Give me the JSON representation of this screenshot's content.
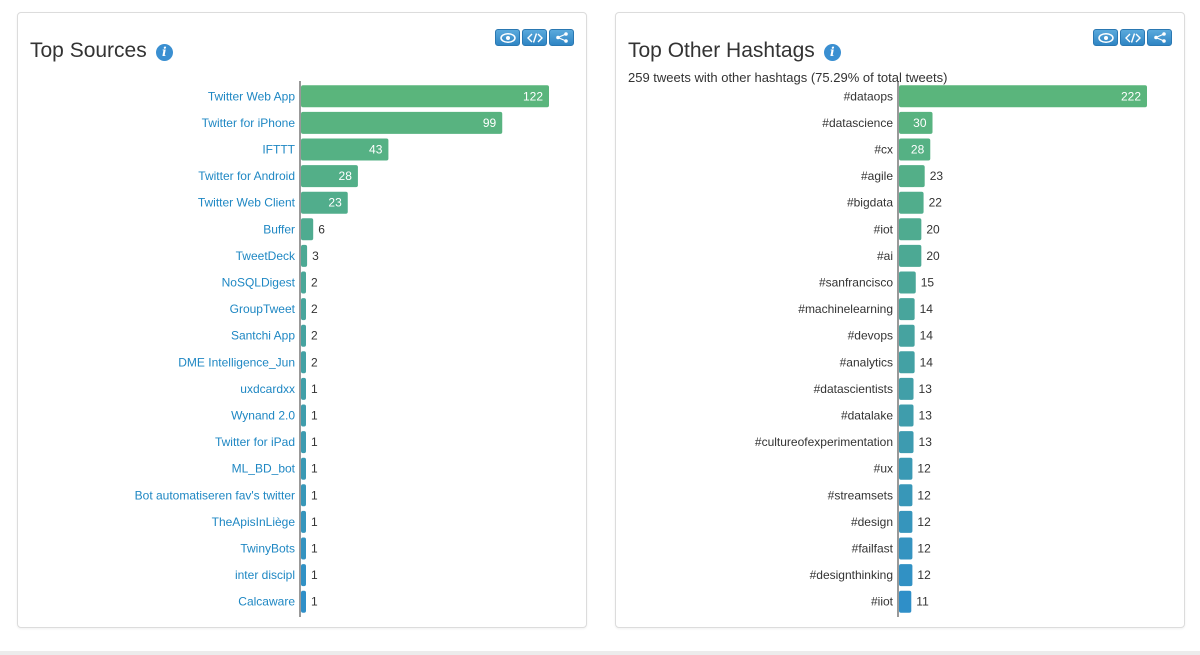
{
  "panels": {
    "sources": {
      "title": "Top Sources",
      "subtitle": ""
    },
    "hashtags": {
      "title": "Top Other Hashtags",
      "subtitle": "259 tweets with other hashtags (75.29% of total tweets)"
    }
  },
  "toolbar_icons": [
    "eye-icon",
    "code-icon",
    "share-icon"
  ],
  "colors": {
    "bar_high": "#5ab57c",
    "bar_low": "#2f8fc8",
    "info": "#3a8fd1",
    "source_link": "#1e87c3"
  },
  "chart_data": [
    {
      "type": "bar",
      "orientation": "horizontal",
      "title": "Top Sources",
      "categories": [
        "Twitter Web App",
        "Twitter for iPhone",
        "IFTTT",
        "Twitter for Android",
        "Twitter Web Client",
        "Buffer",
        "TweetDeck",
        "NoSQLDigest",
        "GroupTweet",
        "Santchi App",
        "DME Intelligence_Jun",
        "uxdcardxx",
        "Wynand 2.0",
        "Twitter for iPad",
        "ML_BD_bot",
        "Bot automatiseren fav's twitter",
        "TheApisInLiège",
        "TwinyBots",
        "inter discipl",
        "Calcaware"
      ],
      "values": [
        122,
        99,
        43,
        28,
        23,
        6,
        3,
        2,
        2,
        2,
        2,
        1,
        1,
        1,
        1,
        1,
        1,
        1,
        1,
        1
      ],
      "xlim": [
        0,
        122
      ]
    },
    {
      "type": "bar",
      "orientation": "horizontal",
      "title": "Top Other Hashtags",
      "categories": [
        "#dataops",
        "#datascience",
        "#cx",
        "#agile",
        "#bigdata",
        "#iot",
        "#ai",
        "#sanfrancisco",
        "#machinelearning",
        "#devops",
        "#analytics",
        "#datascientists",
        "#datalake",
        "#cultureofexperimentation",
        "#ux",
        "#streamsets",
        "#design",
        "#failfast",
        "#designthinking",
        "#iiot"
      ],
      "values": [
        222,
        30,
        28,
        23,
        22,
        20,
        20,
        15,
        14,
        14,
        14,
        13,
        13,
        13,
        12,
        12,
        12,
        12,
        12,
        11
      ],
      "xlim": [
        0,
        222
      ]
    }
  ]
}
